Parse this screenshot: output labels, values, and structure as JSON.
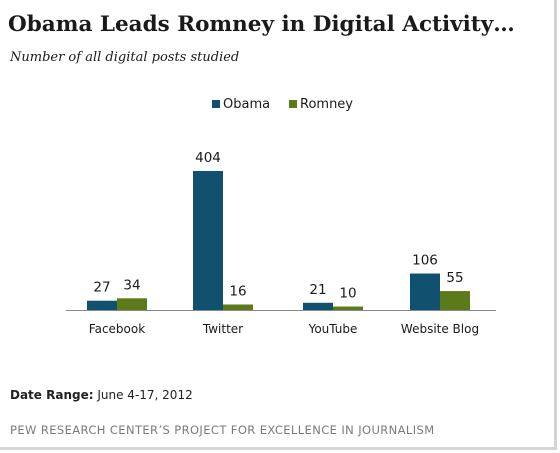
{
  "title": "Obama Leads Romney in Digital Activity…",
  "subtitle": "Number of all digital posts studied",
  "chart_data": {
    "type": "bar",
    "categories": [
      "Facebook",
      "Twitter",
      "YouTube",
      "Website Blog"
    ],
    "series": [
      {
        "name": "Obama",
        "values": [
          27,
          404,
          21,
          106
        ],
        "color": "#11506e"
      },
      {
        "name": "Romney",
        "values": [
          34,
          16,
          10,
          55
        ],
        "color": "#5b7a1a"
      }
    ],
    "data_labels": true,
    "legend": "top-center",
    "grid": false,
    "ylim": [
      0,
      420
    ]
  },
  "footer": {
    "date_label": "Date Range:",
    "date_value": "June 4-17, 2012",
    "source": "PEW RESEARCH CENTER’S PROJECT FOR EXCELLENCE IN JOURNALISM"
  }
}
